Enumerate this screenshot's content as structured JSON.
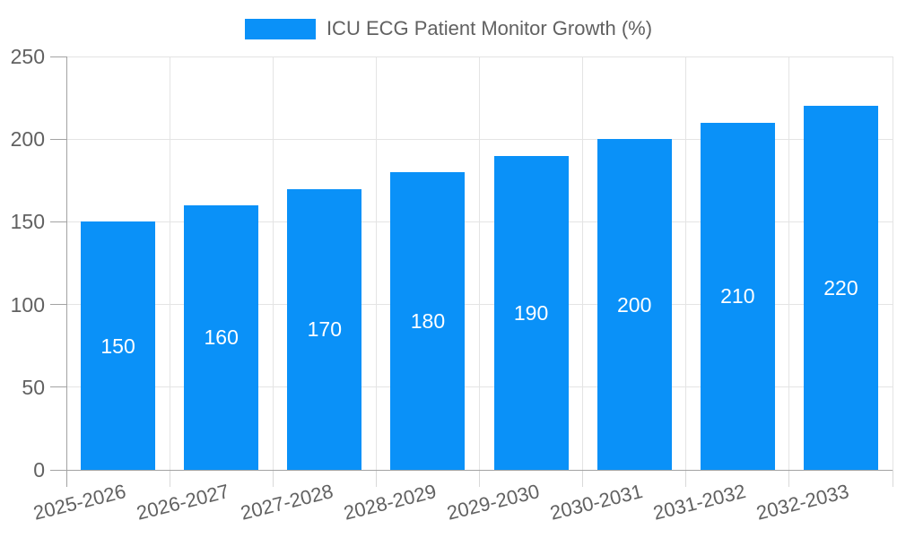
{
  "legend": {
    "label": "ICU ECG Patient Monitor Growth (%)"
  },
  "chart_data": {
    "type": "bar",
    "title": "",
    "categories": [
      "2025-2026",
      "2026-2027",
      "2027-2028",
      "2028-2029",
      "2029-2030",
      "2030-2031",
      "2031-2032",
      "2032-2033"
    ],
    "values": [
      150,
      160,
      170,
      180,
      190,
      200,
      210,
      220
    ],
    "series_name": "ICU ECG Patient Monitor Growth (%)",
    "xlabel": "",
    "ylabel": "",
    "ylim": [
      0,
      250
    ],
    "yticks": [
      0,
      50,
      100,
      150,
      200,
      250
    ],
    "grid": true,
    "legend_position": "top-center",
    "value_labels": "centered-inside-bars-white",
    "colors": {
      "bar": "#0a91f8",
      "grid_line": "#e4e4e4",
      "axis_line": "#a3a3a3",
      "x_tick_mark": "#d9d9d9",
      "tick_label": "#616161",
      "legend_text": "#616161",
      "value_label": "#ffffff",
      "background": "#ffffff"
    }
  }
}
